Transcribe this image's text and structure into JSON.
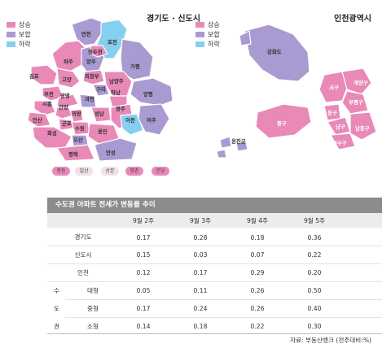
{
  "maps": {
    "gyeonggi": {
      "title": "경기도 · 신도시",
      "legend": [
        {
          "label": "상승",
          "color": "#e889b8"
        },
        {
          "label": "보합",
          "color": "#a99ad1"
        },
        {
          "label": "하락",
          "color": "#86cfee"
        }
      ],
      "regions": [
        "연천",
        "포천",
        "동두천",
        "양주",
        "파주",
        "의정부",
        "가평",
        "김포",
        "고양",
        "남양주",
        "구리",
        "부천",
        "시흥",
        "광명",
        "하남",
        "과천",
        "양평",
        "안산",
        "안양",
        "의왕",
        "성남",
        "군포",
        "수원",
        "광주",
        "화성",
        "용인",
        "이천",
        "여주",
        "오산",
        "평택",
        "안성"
      ],
      "new_towns": [
        "중동",
        "일산",
        "산본",
        "평촌",
        "분당"
      ]
    },
    "incheon": {
      "title": "인천광역시",
      "legend": [
        {
          "label": "상승",
          "color": "#e889b8"
        },
        {
          "label": "보합",
          "color": "#a99ad1"
        },
        {
          "label": "하락",
          "color": "#86cfee"
        }
      ],
      "regions": [
        "강화도",
        "서구",
        "계양구",
        "부평구",
        "중구",
        "동구",
        "남구",
        "남동구",
        "연수구",
        "옹진군"
      ]
    }
  },
  "table": {
    "title": "수도권 아파트 전세가 변동률 추이",
    "columns": [
      "9월 2주",
      "9월 3주",
      "9월 4주",
      "9월 5주"
    ],
    "rows": [
      {
        "label": "경기도",
        "values": [
          "0.17",
          "0.28",
          "0.18",
          "0.36"
        ]
      },
      {
        "label": "신도시",
        "values": [
          "0.15",
          "0.03",
          "0.07",
          "0.22"
        ]
      },
      {
        "label": "인천",
        "values": [
          "0.12",
          "0.17",
          "0.29",
          "0.20"
        ]
      },
      {
        "group": "수",
        "label": "대형",
        "values": [
          "0.05",
          "0.11",
          "0.26",
          "0.50"
        ]
      },
      {
        "group": "도",
        "label": "중형",
        "values": [
          "0.17",
          "0.24",
          "0.26",
          "0.40"
        ]
      },
      {
        "group": "권",
        "label": "소형",
        "values": [
          "0.14",
          "0.18",
          "0.22",
          "0.30"
        ]
      }
    ],
    "source": "자료: 부동산뱅크 (전주대비:%)"
  }
}
